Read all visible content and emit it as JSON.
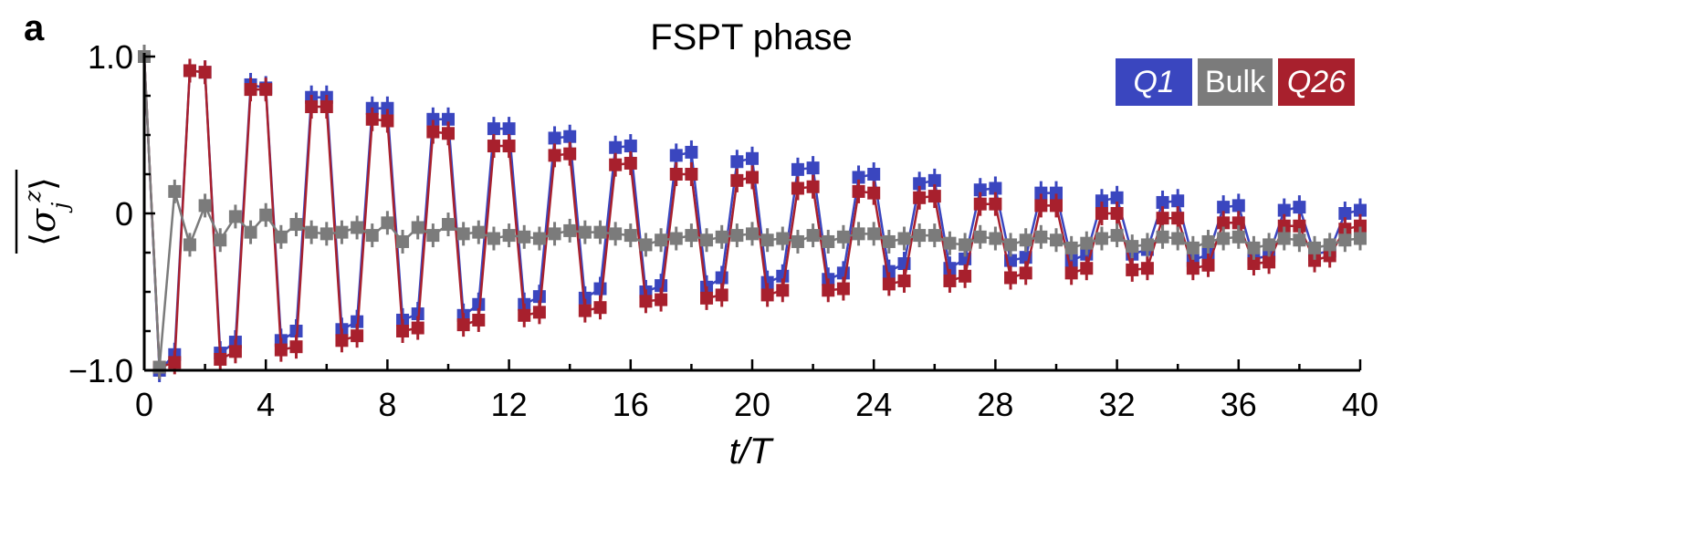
{
  "chart_data": {
    "type": "line",
    "panel_label": "a",
    "title": "FSPT phase",
    "xlabel": "t/T",
    "ylabel": "⟨σ_j^z⟩ (time-averaged)",
    "xlim": [
      0,
      40
    ],
    "ylim": [
      -1,
      1
    ],
    "xticks": [
      "0",
      "4",
      "8",
      "12",
      "16",
      "20",
      "24",
      "28",
      "32",
      "36",
      "40"
    ],
    "yticks": [
      "1.0",
      "0",
      "−1.0"
    ],
    "grid": false,
    "legend_position": "top-right",
    "x": [
      0,
      0.5,
      1,
      1.5,
      2,
      2.5,
      3,
      3.5,
      4,
      4.5,
      5,
      5.5,
      6,
      6.5,
      7,
      7.5,
      8,
      8.5,
      9,
      9.5,
      10,
      10.5,
      11,
      11.5,
      12,
      12.5,
      13,
      13.5,
      14,
      14.5,
      15,
      15.5,
      16,
      16.5,
      17,
      17.5,
      18,
      18.5,
      19,
      19.5,
      20,
      20.5,
      21,
      21.5,
      22,
      22.5,
      23,
      23.5,
      24,
      24.5,
      25,
      25.5,
      26,
      26.5,
      27,
      27.5,
      28,
      28.5,
      29,
      29.5,
      30,
      30.5,
      31,
      31.5,
      32,
      32.5,
      33,
      33.5,
      34,
      34.5,
      35,
      35.5,
      36,
      36.5,
      37,
      37.5,
      38,
      38.5,
      39,
      39.5,
      40
    ],
    "series": [
      {
        "name": "Q1",
        "color": "#3a46bf",
        "values": [
          1.0,
          -1.0,
          -0.9,
          0.91,
          0.9,
          -0.89,
          -0.82,
          0.82,
          0.8,
          -0.81,
          -0.75,
          0.74,
          0.74,
          -0.74,
          -0.69,
          0.67,
          0.67,
          -0.68,
          -0.64,
          0.6,
          0.6,
          -0.65,
          -0.58,
          0.54,
          0.54,
          -0.58,
          -0.53,
          0.48,
          0.49,
          -0.54,
          -0.48,
          0.42,
          0.43,
          -0.5,
          -0.46,
          0.37,
          0.39,
          -0.47,
          -0.41,
          0.33,
          0.35,
          -0.44,
          -0.4,
          0.28,
          0.29,
          -0.42,
          -0.38,
          0.23,
          0.25,
          -0.37,
          -0.32,
          0.19,
          0.21,
          -0.35,
          -0.29,
          0.15,
          0.16,
          -0.3,
          -0.28,
          0.13,
          0.13,
          -0.3,
          -0.26,
          0.08,
          0.1,
          -0.26,
          -0.23,
          0.07,
          0.08,
          -0.3,
          -0.26,
          0.04,
          0.05,
          -0.29,
          -0.27,
          0.02,
          0.04,
          -0.26,
          -0.24,
          0.0,
          0.02
        ]
      },
      {
        "name": "Bulk",
        "color": "#7b7b7b",
        "values": [
          1.0,
          -0.98,
          0.14,
          -0.2,
          0.05,
          -0.17,
          -0.02,
          -0.12,
          -0.01,
          -0.15,
          -0.07,
          -0.12,
          -0.13,
          -0.12,
          -0.09,
          -0.14,
          -0.06,
          -0.18,
          -0.09,
          -0.14,
          -0.07,
          -0.13,
          -0.12,
          -0.16,
          -0.14,
          -0.15,
          -0.16,
          -0.13,
          -0.11,
          -0.12,
          -0.12,
          -0.13,
          -0.14,
          -0.2,
          -0.17,
          -0.16,
          -0.14,
          -0.17,
          -0.15,
          -0.14,
          -0.13,
          -0.17,
          -0.16,
          -0.18,
          -0.14,
          -0.18,
          -0.15,
          -0.13,
          -0.13,
          -0.18,
          -0.16,
          -0.14,
          -0.14,
          -0.19,
          -0.2,
          -0.15,
          -0.16,
          -0.2,
          -0.17,
          -0.15,
          -0.17,
          -0.22,
          -0.19,
          -0.16,
          -0.14,
          -0.21,
          -0.2,
          -0.15,
          -0.16,
          -0.22,
          -0.18,
          -0.16,
          -0.15,
          -0.22,
          -0.2,
          -0.16,
          -0.17,
          -0.22,
          -0.2,
          -0.17,
          -0.16
        ]
      },
      {
        "name": "Q26",
        "color": "#a8202d",
        "values": [
          1.0,
          -0.98,
          -0.95,
          0.91,
          0.9,
          -0.93,
          -0.88,
          0.79,
          0.79,
          -0.87,
          -0.85,
          0.68,
          0.68,
          -0.81,
          -0.78,
          0.6,
          0.59,
          -0.75,
          -0.73,
          0.52,
          0.51,
          -0.71,
          -0.68,
          0.43,
          0.43,
          -0.65,
          -0.63,
          0.37,
          0.38,
          -0.62,
          -0.6,
          0.31,
          0.32,
          -0.56,
          -0.55,
          0.25,
          0.25,
          -0.54,
          -0.52,
          0.21,
          0.23,
          -0.52,
          -0.49,
          0.16,
          0.17,
          -0.49,
          -0.48,
          0.14,
          0.13,
          -0.45,
          -0.43,
          0.1,
          0.11,
          -0.43,
          -0.4,
          0.06,
          0.06,
          -0.41,
          -0.38,
          0.05,
          0.05,
          -0.38,
          -0.35,
          0.0,
          0.0,
          -0.36,
          -0.35,
          -0.03,
          -0.03,
          -0.35,
          -0.33,
          -0.06,
          -0.06,
          -0.32,
          -0.31,
          -0.08,
          -0.08,
          -0.3,
          -0.27,
          -0.1,
          -0.08
        ]
      }
    ]
  }
}
